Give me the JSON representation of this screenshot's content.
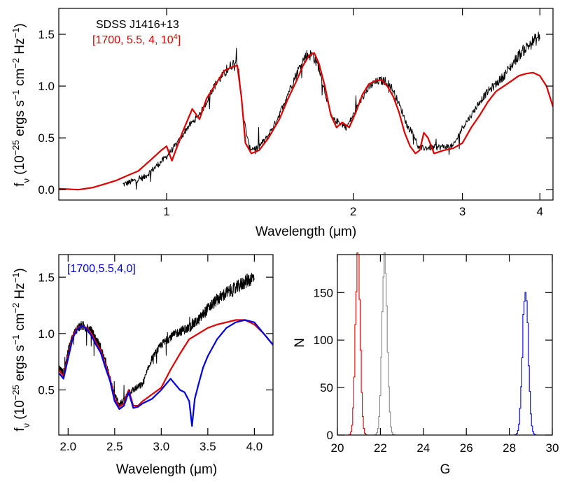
{
  "figure": {
    "chart_data": [
      {
        "id": "top",
        "type": "line",
        "xlabel": "Wavelength (μm)",
        "ylabel": "f_ν (10^-25 ergs s^-1 cm^-2 Hz^-1)",
        "xscale": "log",
        "xlim": [
          0.67,
          4.2
        ],
        "ylim": [
          -0.1,
          1.75
        ],
        "xticks": [
          1,
          2,
          3,
          4
        ],
        "yticks": [
          0.0,
          0.5,
          1.0,
          1.5
        ],
        "ytick_labels": [
          "0.0",
          "0.5",
          "1.0",
          "1.5"
        ],
        "legend_position": "top-left",
        "legend": [
          "SDSS J1416+13",
          "[1700, 5.5, 4, 10^4]"
        ],
        "series": [
          {
            "name": "SDSS J1416+13",
            "color": "#000000",
            "noisy": true,
            "x": [
              0.85,
              0.88,
              0.92,
              0.96,
              1.0,
              1.05,
              1.08,
              1.12,
              1.15,
              1.18,
              1.21,
              1.24,
              1.27,
              1.3,
              1.33,
              1.36,
              1.4,
              1.45,
              1.5,
              1.55,
              1.6,
              1.65,
              1.68,
              1.72,
              1.76,
              1.8,
              1.85,
              1.9,
              1.95,
              2.0,
              2.05,
              2.1,
              2.15,
              2.2,
              2.25,
              2.3,
              2.35,
              2.4,
              2.45,
              2.5,
              2.55,
              2.9,
              3.0,
              3.1,
              3.2,
              3.3,
              3.4,
              3.5,
              3.6,
              3.7,
              3.8,
              3.9,
              4.0
            ],
            "y": [
              0.05,
              0.08,
              0.12,
              0.22,
              0.32,
              0.48,
              0.6,
              0.7,
              0.8,
              0.95,
              1.05,
              1.12,
              1.2,
              1.25,
              0.7,
              0.4,
              0.4,
              0.5,
              0.65,
              0.85,
              1.05,
              1.22,
              1.3,
              1.3,
              1.18,
              0.95,
              0.68,
              0.65,
              0.6,
              0.72,
              0.85,
              0.95,
              1.02,
              1.05,
              1.05,
              1.0,
              0.88,
              0.75,
              0.6,
              0.55,
              0.4,
              0.42,
              0.6,
              0.72,
              0.85,
              0.95,
              1.02,
              1.1,
              1.2,
              1.3,
              1.37,
              1.43,
              1.48
            ]
          },
          {
            "name": "[1700, 5.5, 4, 10^4]",
            "color": "#e00000",
            "noisy": false,
            "x": [
              0.67,
              0.72,
              0.76,
              0.8,
              0.83,
              0.86,
              0.9,
              0.94,
              0.98,
              1.0,
              1.02,
              1.06,
              1.1,
              1.13,
              1.16,
              1.2,
              1.24,
              1.27,
              1.3,
              1.32,
              1.34,
              1.37,
              1.41,
              1.46,
              1.52,
              1.57,
              1.62,
              1.66,
              1.7,
              1.73,
              1.76,
              1.8,
              1.84,
              1.88,
              1.92,
              1.97,
              2.02,
              2.07,
              2.12,
              2.17,
              2.22,
              2.27,
              2.32,
              2.37,
              2.42,
              2.47,
              2.52,
              2.56,
              2.6,
              2.64,
              2.7,
              2.8,
              2.9,
              3.0,
              3.1,
              3.2,
              3.3,
              3.4,
              3.5,
              3.6,
              3.7,
              3.8,
              3.9,
              4.0,
              4.1,
              4.2
            ],
            "y": [
              0.01,
              0.0,
              0.02,
              0.06,
              0.09,
              0.13,
              0.18,
              0.28,
              0.38,
              0.42,
              0.28,
              0.55,
              0.78,
              0.68,
              0.88,
              1.02,
              1.15,
              1.18,
              1.2,
              0.9,
              0.45,
              0.35,
              0.38,
              0.5,
              0.68,
              0.88,
              1.05,
              1.2,
              1.3,
              1.32,
              1.22,
              1.0,
              0.72,
              0.6,
              0.65,
              0.6,
              0.75,
              0.92,
              1.02,
              1.05,
              1.06,
              1.0,
              0.9,
              0.75,
              0.55,
              0.42,
              0.35,
              0.38,
              0.55,
              0.5,
              0.35,
              0.38,
              0.4,
              0.45,
              0.6,
              0.72,
              0.85,
              0.95,
              1.0,
              1.05,
              1.1,
              1.12,
              1.13,
              1.1,
              1.0,
              0.8
            ]
          }
        ]
      },
      {
        "id": "bottom-left",
        "type": "line",
        "xlabel": "Wavelength (μm)",
        "ylabel": "f_ν (10^-25 ergs s^-1 cm^-2 Hz^-1)",
        "xlim": [
          1.9,
          4.2
        ],
        "ylim": [
          0.1,
          1.7
        ],
        "xticks": [
          2.0,
          2.5,
          3.0,
          3.5,
          4.0
        ],
        "xtick_labels": [
          "2.0",
          "2.5",
          "3.0",
          "3.5",
          "4.0"
        ],
        "yticks": [
          0.5,
          1.0,
          1.5
        ],
        "ytick_labels": [
          "0.5",
          "1.0",
          "1.5"
        ],
        "legend_position": "top-left",
        "legend": [
          "[1700,5.5,4,0]"
        ],
        "series": [
          {
            "name": "SDSS J1416+13",
            "color": "#000000",
            "noisy": true,
            "x": [
              1.9,
              1.95,
              2.0,
              2.05,
              2.1,
              2.15,
              2.2,
              2.25,
              2.3,
              2.35,
              2.4,
              2.45,
              2.5,
              2.55,
              2.6,
              2.65,
              2.7,
              2.8,
              2.9,
              3.0,
              3.1,
              3.2,
              3.3,
              3.4,
              3.5,
              3.6,
              3.7,
              3.8,
              3.9,
              4.0
            ],
            "y": [
              0.7,
              0.65,
              0.85,
              0.98,
              1.05,
              1.07,
              1.05,
              1.02,
              0.95,
              0.88,
              0.75,
              0.6,
              0.45,
              0.38,
              0.4,
              0.48,
              0.5,
              0.55,
              0.78,
              0.9,
              0.97,
              1.02,
              1.05,
              1.12,
              1.22,
              1.3,
              1.36,
              1.4,
              1.46,
              1.5
            ]
          },
          {
            "name": "[1700, 5.5, 4, 10^4]",
            "color": "#e00000",
            "noisy": false,
            "x": [
              1.9,
              1.95,
              2.0,
              2.05,
              2.1,
              2.15,
              2.2,
              2.25,
              2.3,
              2.35,
              2.4,
              2.45,
              2.5,
              2.55,
              2.6,
              2.65,
              2.7,
              2.75,
              2.8,
              2.9,
              3.0,
              3.1,
              3.2,
              3.3,
              3.4,
              3.5,
              3.6,
              3.7,
              3.8,
              3.9,
              4.0,
              4.1,
              4.2
            ],
            "y": [
              0.68,
              0.62,
              0.8,
              0.98,
              1.05,
              1.07,
              1.05,
              1.0,
              0.92,
              0.85,
              0.72,
              0.6,
              0.42,
              0.35,
              0.38,
              0.5,
              0.36,
              0.36,
              0.4,
              0.46,
              0.52,
              0.68,
              0.82,
              0.95,
              1.0,
              1.05,
              1.08,
              1.1,
              1.12,
              1.12,
              1.08,
              1.0,
              0.9
            ]
          },
          {
            "name": "[1700,5.5,4,0]",
            "color": "#0000e0",
            "noisy": false,
            "x": [
              1.9,
              1.95,
              2.0,
              2.05,
              2.1,
              2.15,
              2.2,
              2.25,
              2.3,
              2.35,
              2.4,
              2.45,
              2.5,
              2.55,
              2.6,
              2.65,
              2.7,
              2.75,
              2.8,
              2.9,
              3.0,
              3.05,
              3.1,
              3.15,
              3.2,
              3.25,
              3.3,
              3.33,
              3.36,
              3.4,
              3.45,
              3.5,
              3.6,
              3.7,
              3.8,
              3.9,
              4.0,
              4.1,
              4.2
            ],
            "y": [
              0.65,
              0.6,
              0.78,
              0.96,
              1.04,
              1.07,
              1.04,
              0.98,
              0.9,
              0.83,
              0.7,
              0.58,
              0.4,
              0.33,
              0.36,
              0.48,
              0.34,
              0.35,
              0.38,
              0.42,
              0.5,
              0.55,
              0.6,
              0.55,
              0.5,
              0.48,
              0.4,
              0.18,
              0.42,
              0.55,
              0.7,
              0.8,
              0.95,
              1.05,
              1.1,
              1.12,
              1.1,
              1.0,
              0.9
            ]
          }
        ]
      },
      {
        "id": "bottom-right",
        "type": "histogram",
        "xlabel": "G",
        "ylabel": "N",
        "xlim": [
          20,
          30
        ],
        "ylim": [
          0,
          190
        ],
        "xticks": [
          20,
          22,
          24,
          26,
          28,
          30
        ],
        "yticks": [
          0,
          50,
          100,
          150
        ],
        "series": [
          {
            "color": "#e00000",
            "center": 20.95,
            "sigma": 0.11,
            "peak": 190
          },
          {
            "color": "#888888",
            "center": 22.2,
            "sigma": 0.12,
            "peak": 185
          },
          {
            "color": "#0000e0",
            "center": 28.75,
            "sigma": 0.13,
            "peak": 158
          }
        ]
      }
    ]
  }
}
